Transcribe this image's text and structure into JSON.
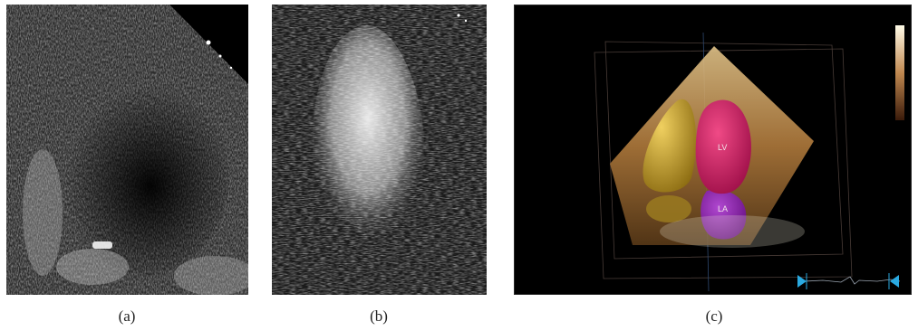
{
  "figure": {
    "panels": [
      {
        "id": "a",
        "caption": "(a)",
        "description_icon": "echocardiogram-2d-icon"
      },
      {
        "id": "b",
        "caption": "(b)",
        "description_icon": "contrast-echocardiogram-icon"
      },
      {
        "id": "c",
        "caption": "(c)",
        "description_icon": "3d-echocardiogram-render-icon"
      }
    ],
    "labels": {
      "lv": "LV",
      "la": "LA"
    },
    "colors": {
      "background": "#000000",
      "lv": "#c4185a",
      "la": "#8a1fa6",
      "atrium_yellow": "#c9a52a",
      "sector_tan": "#c89a5a",
      "ecg_marker": "#2aa9e0"
    }
  }
}
